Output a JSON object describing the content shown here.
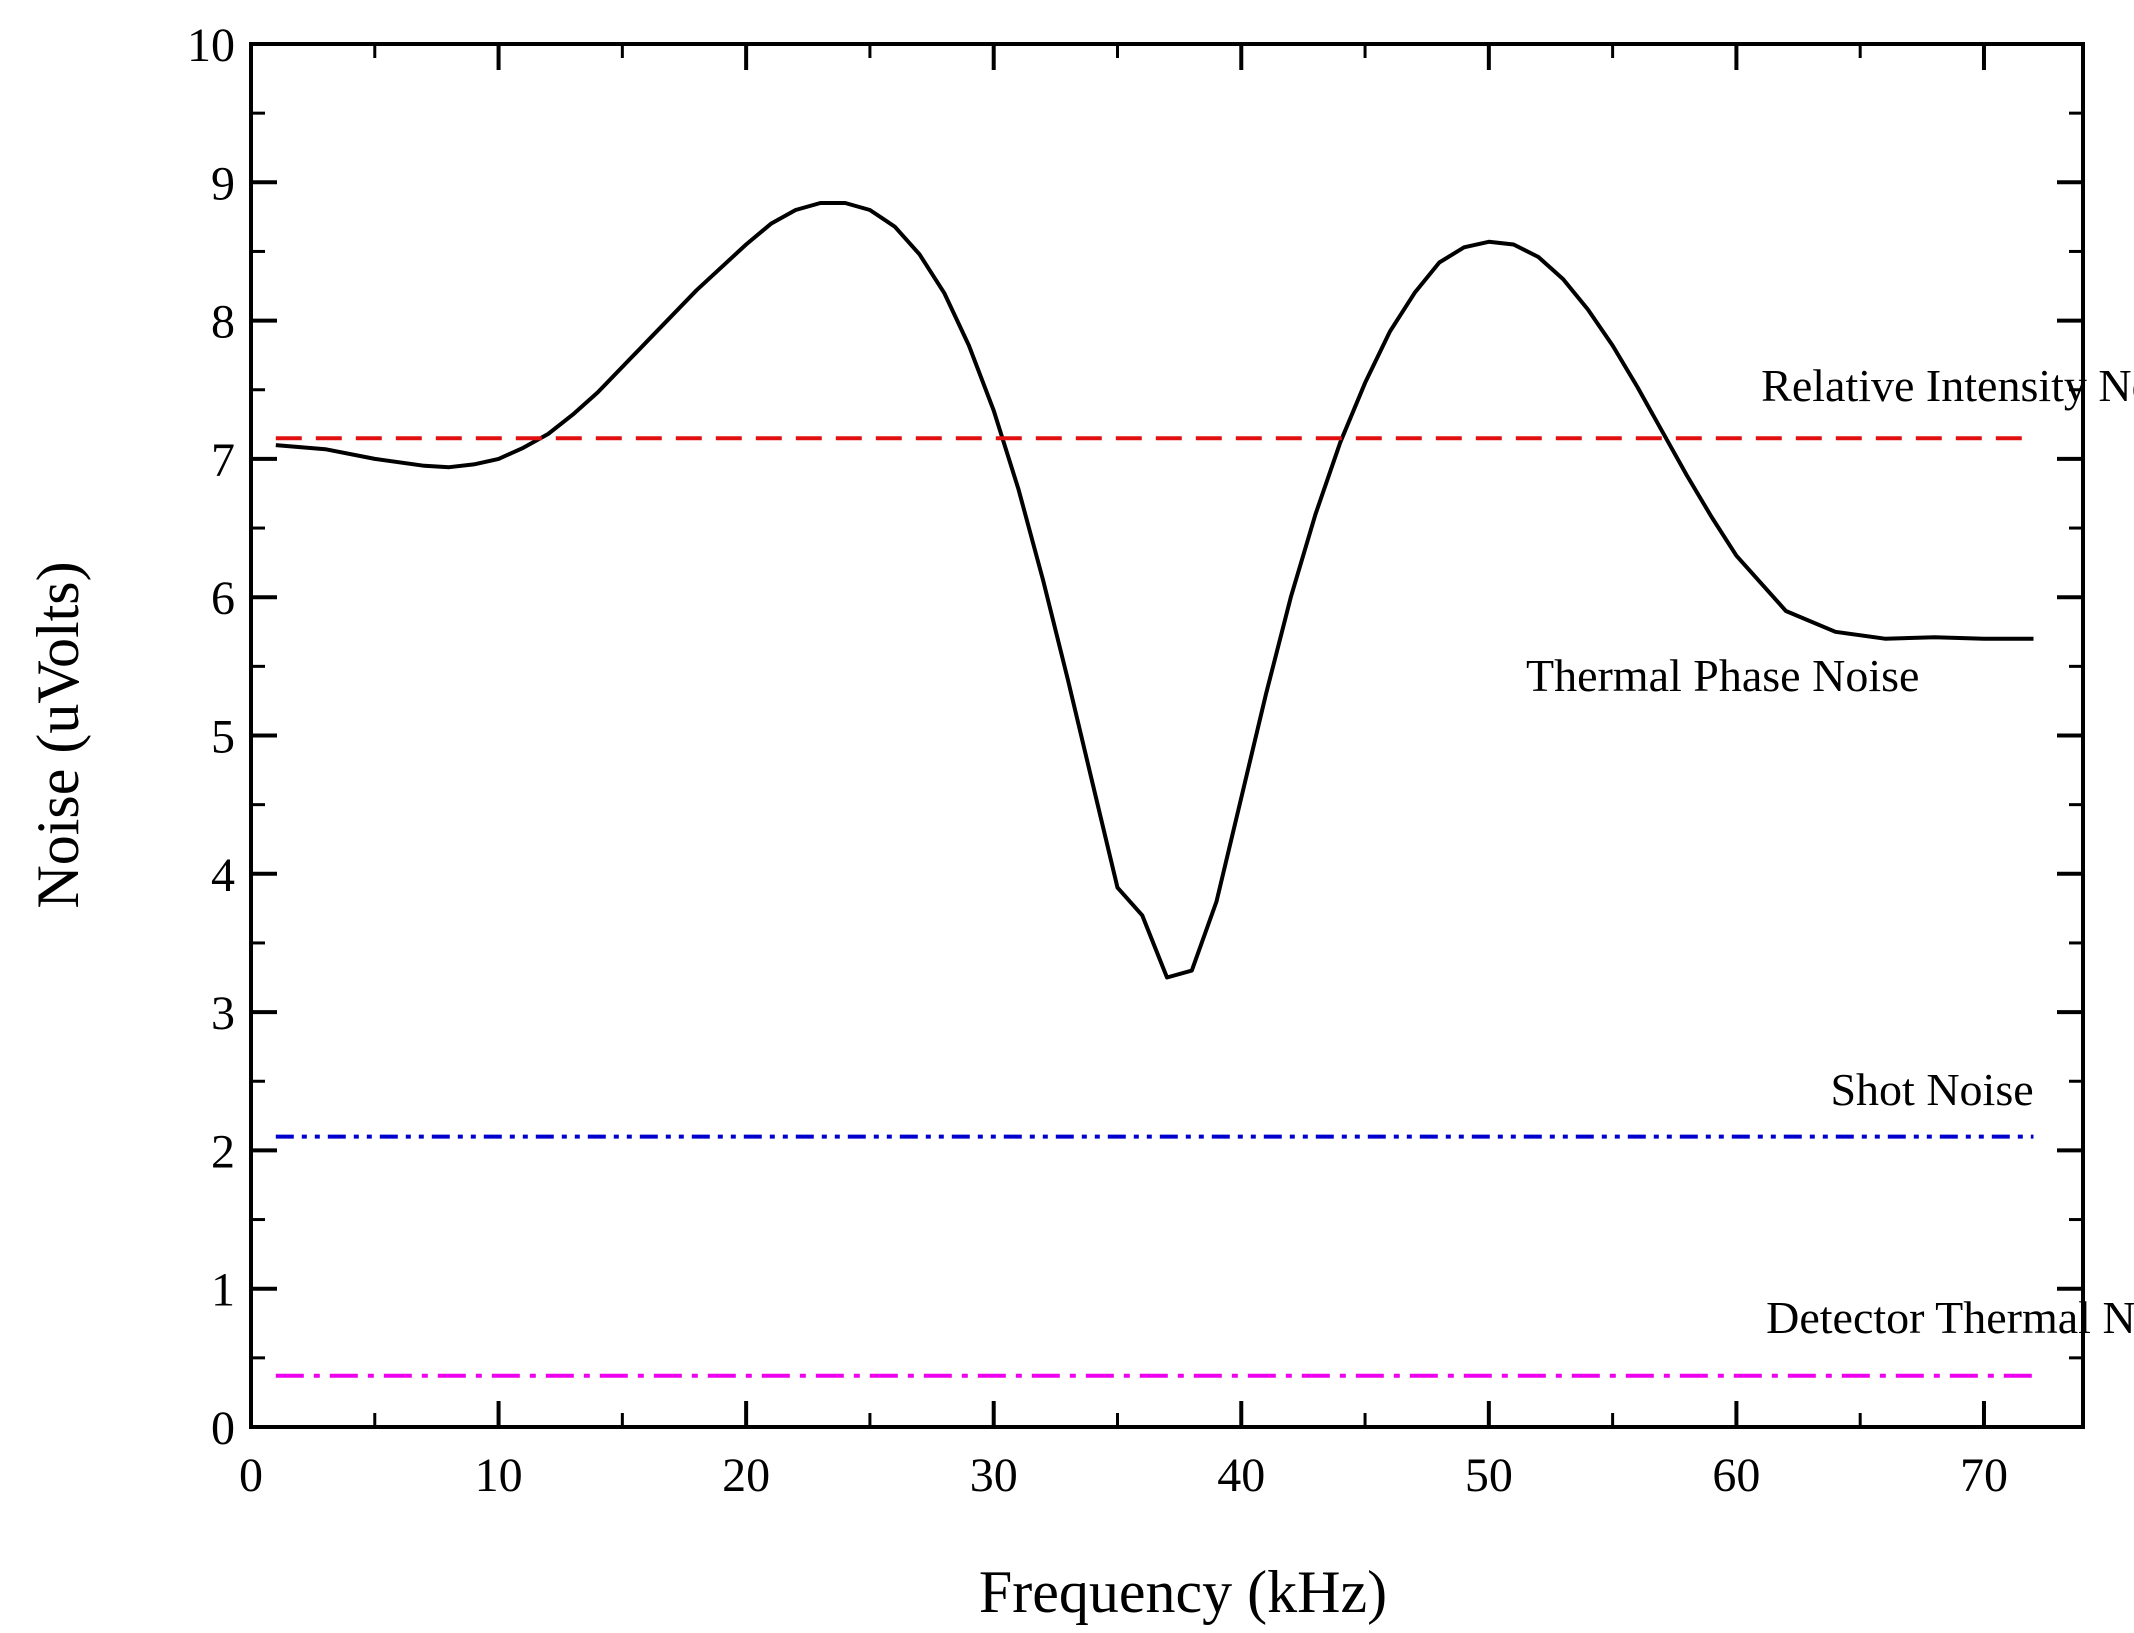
{
  "chart_data": {
    "type": "line",
    "title": "",
    "xlabel": "Frequency (kHz)",
    "ylabel": "Noise (uVolts)",
    "xlim": [
      0,
      74
    ],
    "ylim": [
      0,
      10
    ],
    "xticks": [
      0,
      10,
      20,
      30,
      40,
      50,
      60,
      70
    ],
    "yticks": [
      0,
      1,
      2,
      3,
      4,
      5,
      6,
      7,
      8,
      9,
      10
    ],
    "grid": false,
    "series": [
      {
        "name": "Thermal Phase Noise",
        "color": "#000000",
        "style": "solid",
        "x": [
          1,
          3,
          5,
          7,
          8,
          9,
          10,
          11,
          12,
          13,
          14,
          16,
          18,
          20,
          21,
          22,
          23,
          24,
          25,
          26,
          27,
          28,
          29,
          30,
          31,
          32,
          33,
          34,
          35,
          36,
          37,
          38,
          39,
          40,
          41,
          42,
          43,
          44,
          45,
          46,
          47,
          48,
          49,
          50,
          51,
          52,
          53,
          54,
          55,
          56,
          57,
          58,
          59,
          60,
          62,
          64,
          66,
          68,
          70,
          72
        ],
        "y": [
          7.1,
          7.07,
          7.0,
          6.95,
          6.94,
          6.96,
          7.0,
          7.08,
          7.18,
          7.32,
          7.48,
          7.85,
          8.22,
          8.55,
          8.7,
          8.8,
          8.85,
          8.85,
          8.8,
          8.68,
          8.48,
          8.2,
          7.82,
          7.35,
          6.78,
          6.12,
          5.4,
          4.65,
          3.9,
          3.7,
          3.25,
          3.3,
          3.8,
          4.55,
          5.3,
          6.0,
          6.6,
          7.12,
          7.55,
          7.92,
          8.2,
          8.42,
          8.53,
          8.57,
          8.55,
          8.46,
          8.3,
          8.08,
          7.82,
          7.52,
          7.2,
          6.88,
          6.58,
          6.3,
          5.9,
          5.75,
          5.7,
          5.71,
          5.7,
          5.7
        ]
      },
      {
        "name": "Relative Intensity Noise",
        "color": "#e01010",
        "style": "dashed",
        "x": [
          1,
          72
        ],
        "y": [
          7.15,
          7.15
        ]
      },
      {
        "name": "Shot Noise",
        "color": "#0000cc",
        "style": "dash-dot-dot",
        "x": [
          1,
          72
        ],
        "y": [
          2.1,
          2.1
        ]
      },
      {
        "name": "Detector Thermal Noise",
        "color": "#ee00ee",
        "style": "dash-dot",
        "x": [
          1,
          72
        ],
        "y": [
          0.37,
          0.37
        ]
      }
    ],
    "annotations": [
      {
        "text": "Relative Intensity Noise",
        "x": 61,
        "y": 7.42
      },
      {
        "text": "Thermal Phase Noise",
        "x": 51.5,
        "y": 5.32
      },
      {
        "text": "Shot Noise",
        "x": 63.8,
        "y": 2.33
      },
      {
        "text": "Detector Thermal Noise",
        "x": 61.2,
        "y": 0.68
      }
    ]
  }
}
